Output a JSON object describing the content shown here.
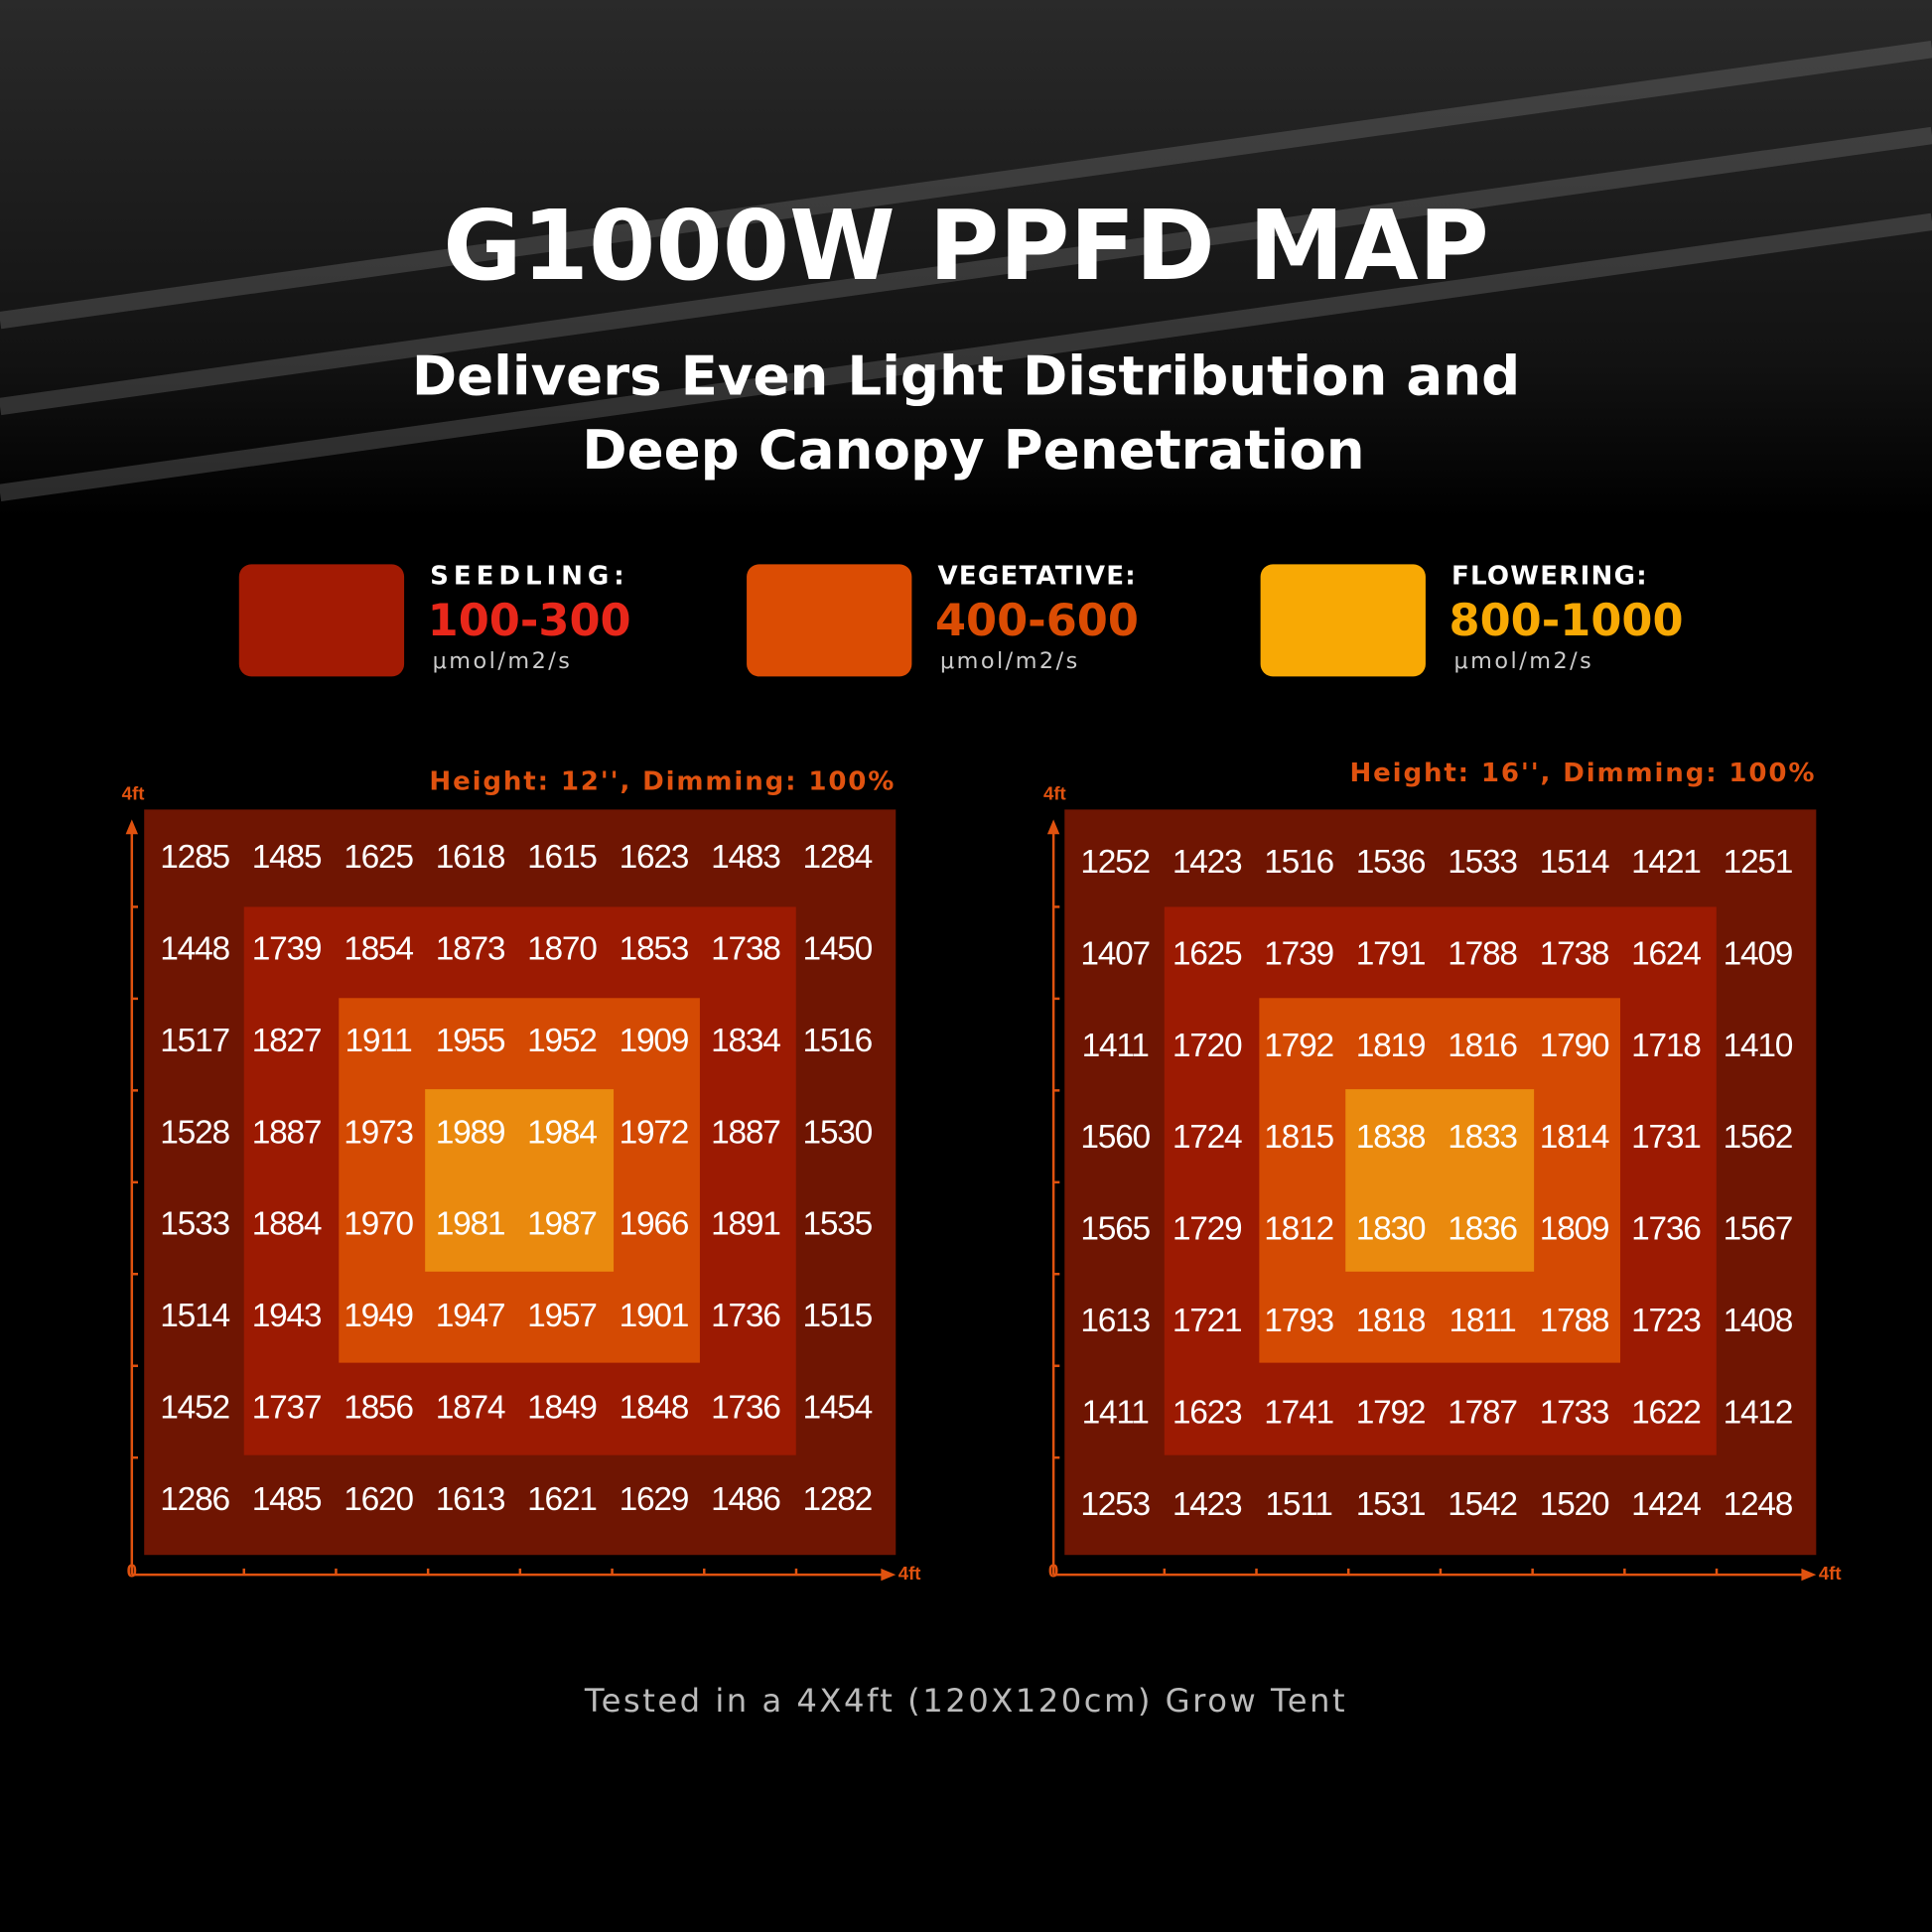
{
  "header": {
    "title": "G1000W PPFD MAP",
    "subtitle": [
      "Delivers Even Light Distribution and",
      "Deep Canopy Penetration"
    ]
  },
  "legend": [
    {
      "label": "SEEDLING:",
      "range": "100-300",
      "unit": "μmol/m2/s",
      "color": "#a31a03"
    },
    {
      "label": "VEGETATIVE:",
      "range": "400-600",
      "unit": "μmol/m2/s",
      "color": "#db4c03"
    },
    {
      "label": "FLOWERING:",
      "range": "800-1000",
      "unit": "μmol/m2/s",
      "color": "#f8a904"
    }
  ],
  "maps": [
    {
      "caption": "Height: 12'', Dimming: 100%",
      "y_axis_label": "4ft",
      "origin": "0",
      "x_axis_label": "4ft",
      "rows": [
        [
          1285,
          1485,
          1625,
          1618,
          1615,
          1623,
          1483,
          1284
        ],
        [
          1448,
          1739,
          1854,
          1873,
          1870,
          1853,
          1738,
          1450
        ],
        [
          1517,
          1827,
          1911,
          1955,
          1952,
          1909,
          1834,
          1516
        ],
        [
          1528,
          1887,
          1973,
          1989,
          1984,
          1972,
          1887,
          1530
        ],
        [
          1533,
          1884,
          1970,
          1981,
          1987,
          1966,
          1891,
          1535
        ],
        [
          1514,
          1943,
          1949,
          1947,
          1957,
          1901,
          1736,
          1515
        ],
        [
          1452,
          1737,
          1856,
          1874,
          1849,
          1848,
          1736,
          1454
        ],
        [
          1286,
          1485,
          1620,
          1613,
          1621,
          1629,
          1486,
          1282
        ]
      ]
    },
    {
      "caption": "Height: 16'', Dimming: 100%",
      "y_axis_label": "4ft",
      "origin": "0",
      "x_axis_label": "4ft",
      "rows": [
        [
          1252,
          1423,
          1516,
          1536,
          1533,
          1514,
          1421,
          1251
        ],
        [
          1407,
          1625,
          1739,
          1791,
          1788,
          1738,
          1624,
          1409
        ],
        [
          1411,
          1720,
          1792,
          1819,
          1816,
          1790,
          1718,
          1410
        ],
        [
          1560,
          1724,
          1815,
          1838,
          1833,
          1814,
          1731,
          1562
        ],
        [
          1565,
          1729,
          1812,
          1830,
          1836,
          1809,
          1736,
          1567
        ],
        [
          1613,
          1721,
          1793,
          1818,
          1811,
          1788,
          1723,
          1408
        ],
        [
          1411,
          1623,
          1741,
          1792,
          1787,
          1733,
          1622,
          1412
        ],
        [
          1253,
          1423,
          1511,
          1531,
          1542,
          1520,
          1424,
          1248
        ]
      ]
    }
  ],
  "footer": "Tested in a 4X4ft (120X120cm) Grow Tent"
}
